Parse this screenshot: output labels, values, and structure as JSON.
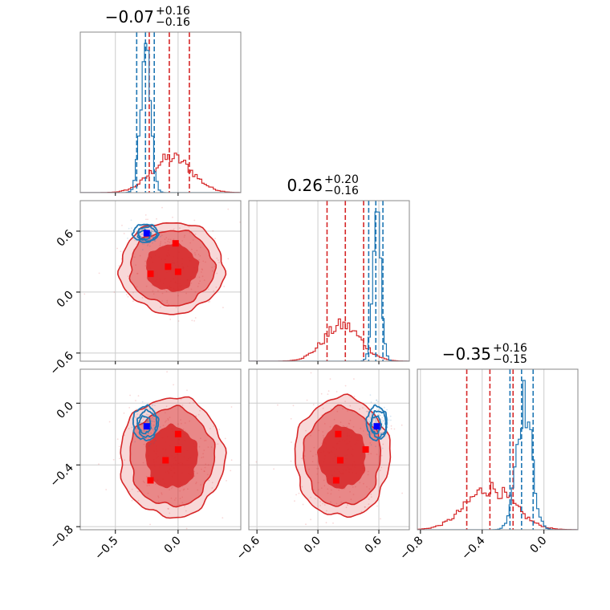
{
  "chart_data": {
    "type": "corner",
    "colors": {
      "red": "#d62728",
      "blue": "#1f77b4",
      "marker_red": "#ff0000",
      "marker_blue": "#0000ff"
    },
    "grid": true,
    "parameters": [
      {
        "range": [
          -0.78,
          0.5
        ],
        "ticks": [
          "-0.5",
          "0.0"
        ],
        "tick_values": [
          -0.5,
          0.0
        ],
        "title": {
          "main": "−0.07",
          "plus": "+0.16",
          "minus": "−0.16"
        }
      },
      {
        "range": [
          -0.68,
          0.9
        ],
        "ticks": [
          "-0.6",
          "0.0",
          "0.6"
        ],
        "tick_values": [
          -0.6,
          0.0,
          0.6
        ],
        "title": {
          "main": "0.26",
          "plus": "+0.20",
          "minus": "−0.16"
        }
      },
      {
        "range": [
          -0.82,
          0.22
        ],
        "ticks": [
          "-0.8",
          "-0.4",
          "0.0"
        ],
        "tick_values": [
          -0.8,
          -0.4,
          0.0
        ],
        "title": {
          "main": "−0.35",
          "plus": "+0.16",
          "minus": "−0.15"
        }
      }
    ],
    "tick_labels": {
      "x": [
        [
          "−0.5",
          "0.0"
        ],
        [
          "−0.6",
          "0.0",
          "0.6"
        ],
        [
          "−0.8",
          "−0.4",
          "0.0"
        ]
      ],
      "y": [
        null,
        [
          "−0.6",
          "0.0",
          "0.6"
        ],
        [
          "−0.8",
          "−0.4",
          "0.0"
        ]
      ]
    },
    "series": [
      {
        "color": "red",
        "centers": [
          -0.05,
          0.24,
          -0.35
        ],
        "sigmas": [
          0.16,
          0.18,
          0.155
        ],
        "quantile_lines": [
          [
            -0.23,
            0.09
          ],
          [
            0.09,
            0.45
          ],
          [
            -0.5,
            -0.2
          ]
        ],
        "markers": [
          [
            [
              -0.22,
              0.18
            ],
            [
              -0.08,
              0.25
            ],
            [
              0.0,
              0.2
            ],
            [
              -0.02,
              0.48
            ]
          ],
          [
            [
              -0.22,
              -0.5
            ],
            [
              -0.1,
              -0.37
            ],
            [
              0.0,
              -0.3
            ],
            [
              0.0,
              -0.2
            ]
          ],
          [
            [
              0.18,
              -0.5
            ],
            [
              0.22,
              -0.37
            ],
            [
              0.47,
              -0.3
            ],
            [
              0.2,
              -0.2
            ]
          ]
        ]
      },
      {
        "color": "blue",
        "centers": [
          -0.26,
          0.58,
          -0.13
        ],
        "sigmas": [
          0.04,
          0.04,
          0.05
        ],
        "quantile_lines": [
          [
            -0.33,
            -0.19
          ],
          [
            0.5,
            0.64
          ],
          [
            -0.22,
            -0.07
          ]
        ],
        "markers": [
          [
            [
              -0.25,
              0.58
            ]
          ],
          [
            [
              -0.25,
              -0.15
            ]
          ],
          [
            [
              0.58,
              -0.15
            ]
          ]
        ]
      }
    ]
  }
}
